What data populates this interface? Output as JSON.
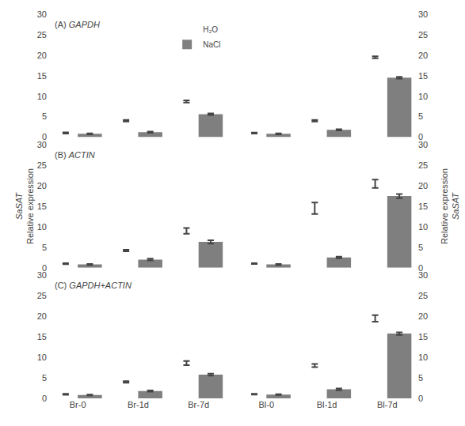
{
  "chart_data": [
    {
      "type": "bar",
      "categories": [
        "Br-0",
        "Br-1d",
        "Br-7d"
      ],
      "series": [
        {
          "name": "H₂O",
          "color": "#ffffff",
          "values": [
            1.0,
            4.0,
            8.7
          ],
          "errors": [
            0.15,
            0.2,
            0.25
          ]
        },
        {
          "name": "NaCl",
          "color": "#7f7f7f",
          "values": [
            0.8,
            1.2,
            5.6
          ],
          "errors": [
            0.12,
            0.15,
            0.2
          ]
        }
      ],
      "ylim": [
        0,
        30
      ],
      "yticks": [
        0,
        5,
        10,
        15,
        20,
        25,
        30
      ],
      "grid": false,
      "legend": "upper right",
      "tick_labels": "y",
      "annotations": [
        {
          "text": "(A) GAPDH",
          "italic": "GAPDH"
        }
      ]
    },
    {
      "type": "bar",
      "categories": [
        "Bl-0",
        "Bl-1d",
        "Bl-7d"
      ],
      "series": [
        {
          "name": "H₂O",
          "color": "#ffffff",
          "values": [
            1.0,
            4.0,
            19.5
          ],
          "errors": [
            0.12,
            0.2,
            0.25
          ]
        },
        {
          "name": "NaCl",
          "color": "#7f7f7f",
          "values": [
            0.8,
            1.8,
            14.5
          ],
          "errors": [
            0.12,
            0.15,
            0.2
          ]
        }
      ],
      "ylim": [
        0,
        30
      ],
      "yticks": [
        0,
        5,
        10,
        15,
        20,
        25,
        30
      ],
      "grid": false,
      "tick_labels": "y"
    },
    {
      "type": "bar",
      "categories": [
        "Br-0",
        "Br-1d",
        "Br-7d"
      ],
      "series": [
        {
          "name": "H₂O",
          "color": "#ffffff",
          "values": [
            1.0,
            4.2,
            9.0
          ],
          "errors": [
            0.12,
            0.2,
            0.7
          ]
        },
        {
          "name": "NaCl",
          "color": "#7f7f7f",
          "values": [
            0.8,
            2.0,
            6.3
          ],
          "errors": [
            0.1,
            0.2,
            0.4
          ]
        }
      ],
      "ylim": [
        0,
        30
      ],
      "yticks": [
        0,
        5,
        10,
        15,
        20,
        25,
        30
      ],
      "grid": false,
      "tick_labels": "y",
      "ylabel": [
        "SaSAT",
        "Relative expression"
      ],
      "annotations": [
        {
          "text": "(B) ACTIN",
          "italic": "ACTIN"
        }
      ]
    },
    {
      "type": "bar",
      "categories": [
        "Bl-0",
        "Bl-1d",
        "Bl-7d"
      ],
      "series": [
        {
          "name": "H₂O",
          "color": "#ffffff",
          "values": [
            1.0,
            14.5,
            20.5
          ],
          "errors": [
            0.1,
            1.4,
            1.0
          ]
        },
        {
          "name": "NaCl",
          "color": "#7f7f7f",
          "values": [
            0.8,
            2.5,
            17.5
          ],
          "errors": [
            0.1,
            0.2,
            0.5
          ]
        }
      ],
      "ylim": [
        0,
        30
      ],
      "yticks": [
        0,
        5,
        10,
        15,
        20,
        25,
        30
      ],
      "grid": false,
      "tick_labels": "y",
      "ylabel": [
        "SaSAT",
        "Relative expression"
      ]
    },
    {
      "type": "bar",
      "categories": [
        "Br-0",
        "Br-1d",
        "Br-7d"
      ],
      "series": [
        {
          "name": "H₂O",
          "color": "#ffffff",
          "values": [
            1.0,
            4.0,
            8.6
          ],
          "errors": [
            0.12,
            0.2,
            0.5
          ]
        },
        {
          "name": "NaCl",
          "color": "#7f7f7f",
          "values": [
            0.8,
            1.8,
            5.8
          ],
          "errors": [
            0.1,
            0.15,
            0.25
          ]
        }
      ],
      "ylim": [
        0,
        30
      ],
      "yticks": [
        0,
        5,
        10,
        15,
        20,
        25,
        30
      ],
      "grid": false,
      "annotations": [
        {
          "text": "(C) GAPDH+ACTIN",
          "italic": "GAPDH+ACTIN"
        }
      ]
    },
    {
      "type": "bar",
      "categories": [
        "Bl-0",
        "Bl-1d",
        "Bl-7d"
      ],
      "series": [
        {
          "name": "H₂O",
          "color": "#ffffff",
          "values": [
            1.0,
            8.0,
            19.5
          ],
          "errors": [
            0.1,
            0.4,
            0.8
          ]
        },
        {
          "name": "NaCl",
          "color": "#7f7f7f",
          "values": [
            0.9,
            2.2,
            15.8
          ],
          "errors": [
            0.1,
            0.2,
            0.3
          ]
        }
      ],
      "ylim": [
        0,
        30
      ],
      "yticks": [
        0,
        5,
        10,
        15,
        20,
        25,
        30
      ],
      "grid": false
    }
  ]
}
